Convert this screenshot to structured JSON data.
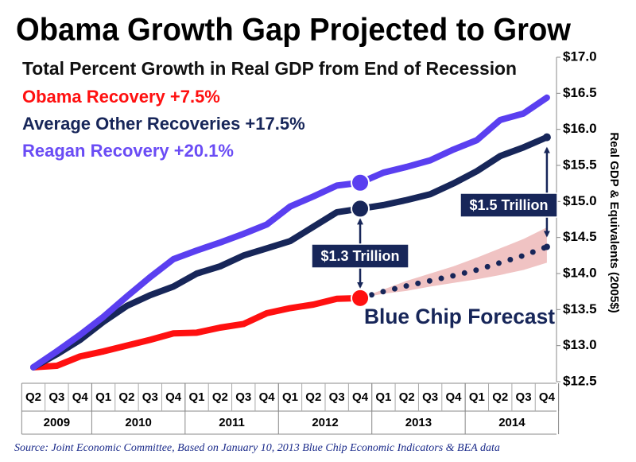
{
  "chart_data": {
    "type": "line",
    "title": "Obama Growth Gap Projected to Grow",
    "subtitle": "Total Percent Growth in Real GDP from End of Recession",
    "y_label": "Real GDP & Equivalents (2005$)",
    "source": "Source:  Joint Economic Committee,  Based on January 10, 2013 Blue Chip Economic Indicators & BEA data",
    "categories": [
      "Q2",
      "Q3",
      "Q4",
      "Q1",
      "Q2",
      "Q3",
      "Q4",
      "Q1",
      "Q2",
      "Q3",
      "Q4",
      "Q1",
      "Q2",
      "Q3",
      "Q4",
      "Q1",
      "Q2",
      "Q3",
      "Q4",
      "Q1",
      "Q2",
      "Q3",
      "Q4"
    ],
    "years": [
      "2009",
      "2010",
      "2011",
      "2012",
      "2013",
      "2014"
    ],
    "series": [
      {
        "name": "Obama Recovery  +7.5%",
        "color": "#ff1010",
        "values": [
          12.7,
          12.72,
          12.85,
          12.92,
          13.0,
          13.08,
          13.17,
          13.18,
          13.25,
          13.3,
          13.45,
          13.52,
          13.57,
          13.65,
          13.66,
          null,
          null,
          null,
          null,
          null,
          null,
          null,
          null
        ]
      },
      {
        "name": "Average Other Recoveries +17.5%",
        "color": "#172659",
        "values": [
          12.7,
          12.88,
          13.08,
          13.33,
          13.55,
          13.7,
          13.82,
          14.0,
          14.1,
          14.25,
          14.35,
          14.45,
          14.65,
          14.85,
          14.9,
          14.95,
          15.02,
          15.1,
          15.25,
          15.42,
          15.63,
          15.75,
          15.89
        ]
      },
      {
        "name": "Reagan Recovery  +20.1%",
        "color": "#5a3ff0",
        "values": [
          12.7,
          12.92,
          13.15,
          13.4,
          13.68,
          13.95,
          14.2,
          14.32,
          14.43,
          14.55,
          14.68,
          14.93,
          15.07,
          15.22,
          15.26,
          15.4,
          15.48,
          15.57,
          15.72,
          15.85,
          16.13,
          16.22,
          16.44
        ]
      },
      {
        "name": "Blue Chip Forecast",
        "color": "#172659",
        "values": [
          null,
          null,
          null,
          null,
          null,
          null,
          null,
          null,
          null,
          null,
          null,
          null,
          null,
          null,
          13.66,
          13.75,
          13.83,
          13.9,
          13.97,
          14.05,
          14.15,
          14.25,
          14.37
        ]
      }
    ],
    "band": {
      "color": "#e9a9a9",
      "high": [
        null,
        null,
        null,
        null,
        null,
        null,
        null,
        null,
        null,
        null,
        null,
        null,
        null,
        null,
        13.66,
        13.78,
        13.9,
        14.0,
        14.1,
        14.22,
        14.35,
        14.48,
        14.64
      ],
      "low": [
        null,
        null,
        null,
        null,
        null,
        null,
        null,
        null,
        null,
        null,
        null,
        null,
        null,
        null,
        13.66,
        13.72,
        13.76,
        13.82,
        13.87,
        13.92,
        13.98,
        14.05,
        14.15
      ]
    },
    "annotations": [
      "$1.3 Trillion",
      "$1.5 Trillion"
    ],
    "ylim": [
      12.5,
      17.0
    ],
    "yticks": [
      {
        "value": 12.5,
        "label": "$12.5"
      },
      {
        "value": 13.0,
        "label": "$13.0"
      },
      {
        "value": 13.5,
        "label": "$13.5"
      },
      {
        "value": 14.0,
        "label": "$14.0"
      },
      {
        "value": 14.5,
        "label": "$14.5"
      },
      {
        "value": 15.0,
        "label": "$15.0"
      },
      {
        "value": 15.5,
        "label": "$15.5"
      },
      {
        "value": 16.0,
        "label": "$16.0"
      },
      {
        "value": 16.5,
        "label": "$16.5"
      },
      {
        "value": 17.0,
        "label": "$17.0"
      }
    ]
  }
}
